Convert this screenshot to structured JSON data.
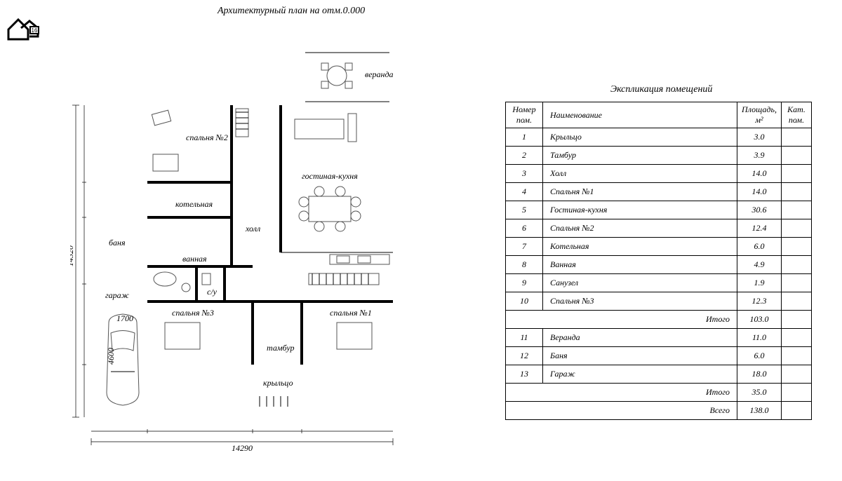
{
  "title": "Архитектурный план на отм.0.000",
  "logo_badge": "16",
  "dims": {
    "width": "14290",
    "height": "14320"
  },
  "rooms": {
    "veranda": "веранда",
    "bedroom2": "спальня №2",
    "living": "гостиная-кухня",
    "boiler": "котельная",
    "hall": "холл",
    "banya": "баня",
    "bath": "ванная",
    "wc": "с/у",
    "garage": "гараж",
    "bedroom3": "спальня №3",
    "tambur": "тамбур",
    "bedroom1": "спальня №1",
    "porch": "крыльцо",
    "car_w": "1700",
    "car_l": "4600"
  },
  "table": {
    "title": "Экспликация помещений",
    "head": {
      "num": "Номер пом.",
      "name": "Наименование",
      "area": "Площадь, м²",
      "cat": "Кат. пом."
    },
    "rows": [
      {
        "n": "1",
        "name": "Крыльцо",
        "area": "3.0"
      },
      {
        "n": "2",
        "name": "Тамбур",
        "area": "3.9"
      },
      {
        "n": "3",
        "name": "Холл",
        "area": "14.0"
      },
      {
        "n": "4",
        "name": "Спальня №1",
        "area": "14.0"
      },
      {
        "n": "5",
        "name": "Гостиная-кухня",
        "area": "30.6"
      },
      {
        "n": "6",
        "name": "Спальня №2",
        "area": "12.4"
      },
      {
        "n": "7",
        "name": "Котельная",
        "area": "6.0"
      },
      {
        "n": "8",
        "name": "Ванная",
        "area": "4.9"
      },
      {
        "n": "9",
        "name": "Санузел",
        "area": "1.9"
      },
      {
        "n": "10",
        "name": "Спальня №3",
        "area": "12.3"
      }
    ],
    "sub1": {
      "label": "Итого",
      "val": "103.0"
    },
    "rows2": [
      {
        "n": "11",
        "name": "Веранда",
        "area": "11.0"
      },
      {
        "n": "12",
        "name": "Баня",
        "area": "6.0"
      },
      {
        "n": "13",
        "name": "Гараж",
        "area": "18.0"
      }
    ],
    "sub2": {
      "label": "Итого",
      "val": "35.0"
    },
    "total": {
      "label": "Всего",
      "val": "138.0"
    }
  },
  "style": {
    "wall_color": "#000000",
    "wall_width": 4,
    "furn_color": "#555555",
    "furn_width": 1,
    "dim_color": "#000000",
    "dim_width": 0.7,
    "font": "Times New Roman italic",
    "label_fontsize": 12,
    "title_fontsize": 14,
    "background": "#ffffff",
    "table_border": "#000000"
  }
}
